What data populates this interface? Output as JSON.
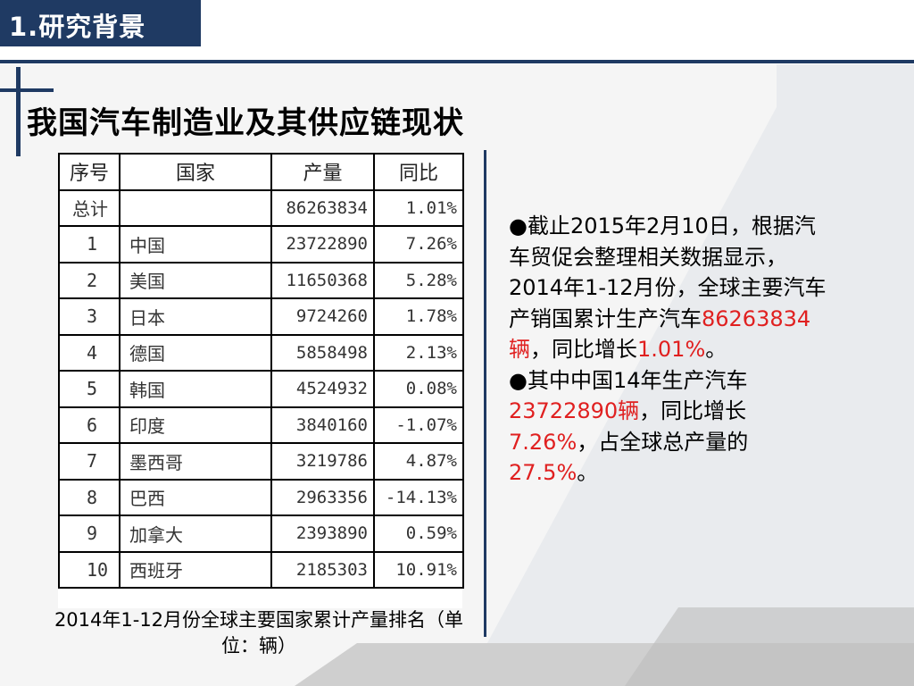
{
  "section_tab": "1.研究背景",
  "slide_title": "我国汽车制造业及其供应链现状",
  "table": {
    "headers": [
      "序号",
      "国家",
      "产量",
      "同比"
    ],
    "rows": [
      [
        "总计",
        "",
        "86263834",
        "1.01%"
      ],
      [
        "1",
        "中国",
        "23722890",
        "7.26%"
      ],
      [
        "2",
        "美国",
        "11650368",
        "5.28%"
      ],
      [
        "3",
        "日本",
        "9724260",
        "1.78%"
      ],
      [
        "4",
        "德国",
        "5858498",
        "2.13%"
      ],
      [
        "5",
        "韩国",
        "4524932",
        "0.08%"
      ],
      [
        "6",
        "印度",
        "3840160",
        "-1.07%"
      ],
      [
        "7",
        "墨西哥",
        "3219786",
        "4.87%"
      ],
      [
        "8",
        "巴西",
        "2963356",
        "-14.13%"
      ],
      [
        "9",
        "加拿大",
        "2393890",
        "0.59%"
      ],
      [
        "10",
        "西班牙",
        "2185303",
        "10.91%"
      ]
    ]
  },
  "caption": "2014年1-12月份全球主要国家累计产量排名（单位：辆）",
  "notes": {
    "p1_a": "●截止2015年2月10日，根据汽车贸促会整理相关数据显示，2014年1-12月份，全球主要汽车产销国累计生产汽车",
    "p1_red1": "86263834辆",
    "p1_b": "，同比增长",
    "p1_red2": "1.01%",
    "p1_c": "。",
    "p2_a": "●其中中国14年生产汽车",
    "p2_red1": "23722890辆",
    "p2_b": "，同比增长",
    "p2_red2": "7.26%",
    "p2_c": "，占全球总产量的",
    "p2_red3": "27.5%",
    "p2_d": "。"
  },
  "colors": {
    "accent": "#1f3a63",
    "highlight": "#e02020"
  }
}
